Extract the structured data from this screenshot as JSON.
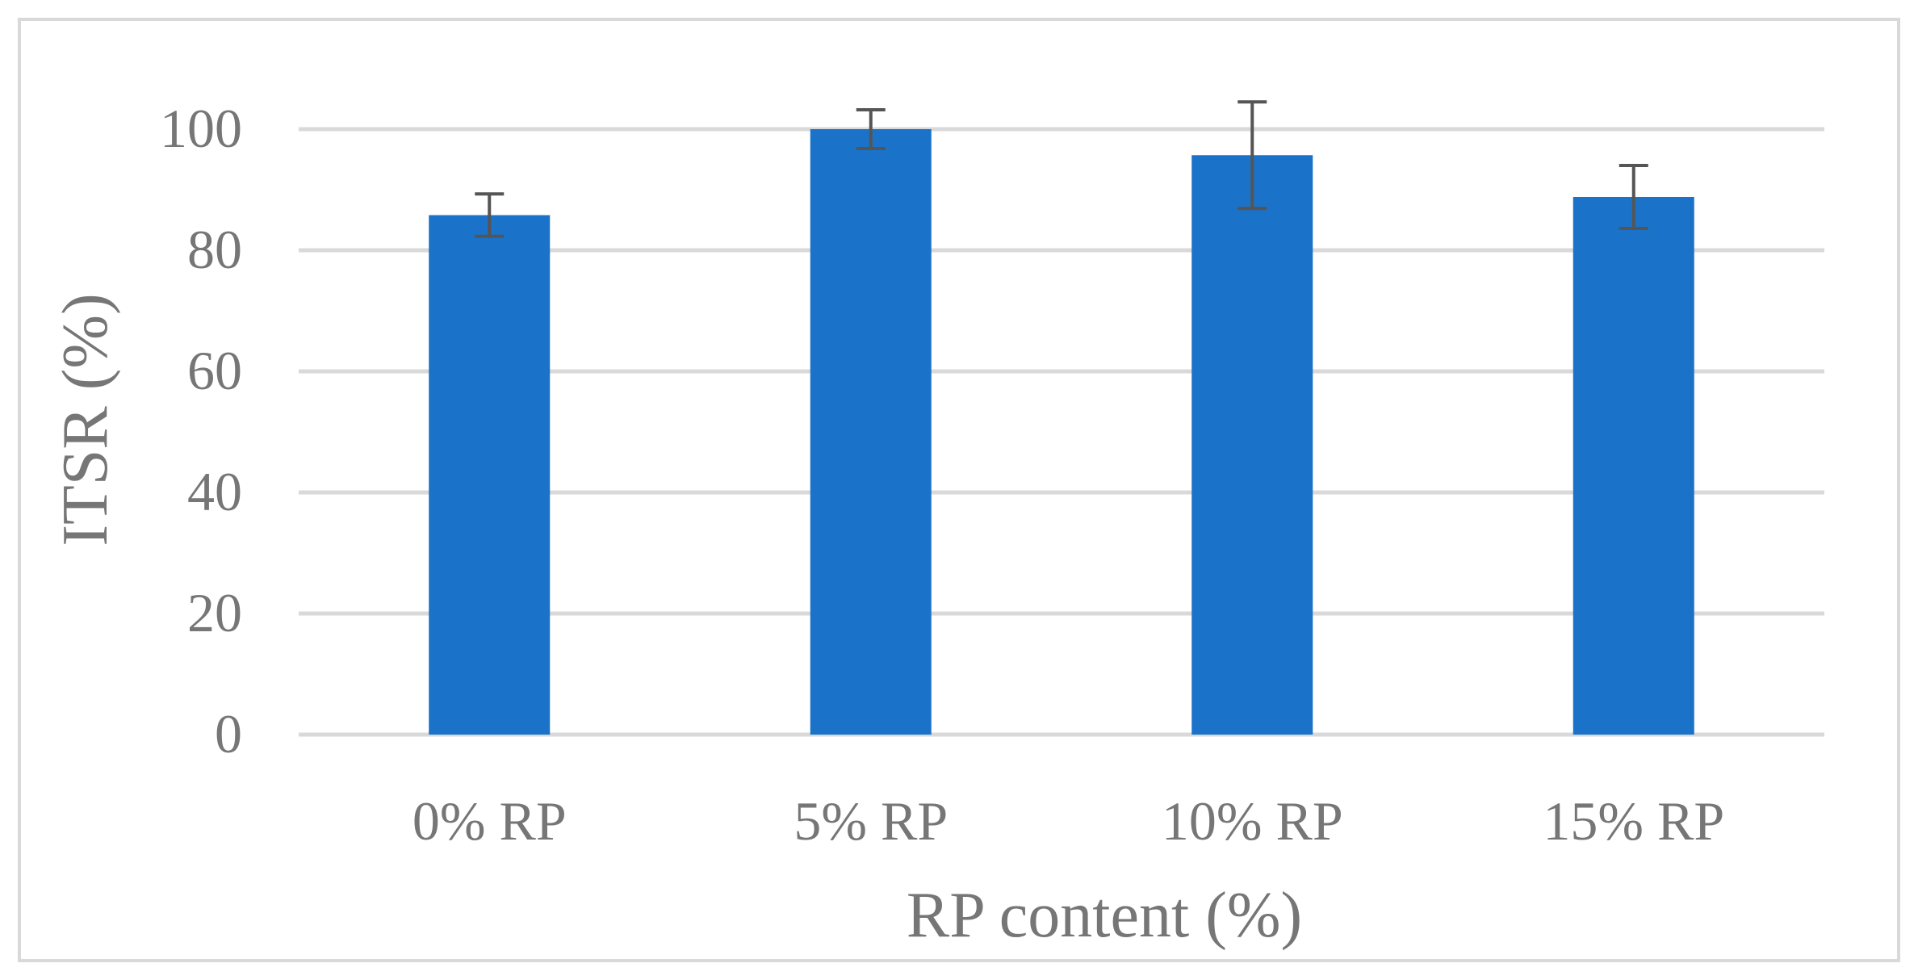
{
  "chart_data": {
    "type": "bar",
    "categories": [
      "0% RP",
      "5% RP",
      "10% RP",
      "15% RP"
    ],
    "series": [
      {
        "values": [
          85.8,
          100.0,
          95.7,
          88.8
        ],
        "error": [
          3.5,
          3.2,
          8.8,
          5.2
        ]
      }
    ],
    "xlabel": "RP content (%)",
    "ylabel": "ITSR (%)",
    "ylim": [
      0,
      100
    ],
    "yticks": [
      "0",
      "20",
      "40",
      "60",
      "80",
      "100"
    ],
    "grid": true,
    "legend": "none",
    "colors": {
      "bar": "#1a73c9",
      "error_bar": "#555555",
      "grid": "#d9d9d9",
      "text": "#767676",
      "border": "#d9d9d9"
    }
  }
}
